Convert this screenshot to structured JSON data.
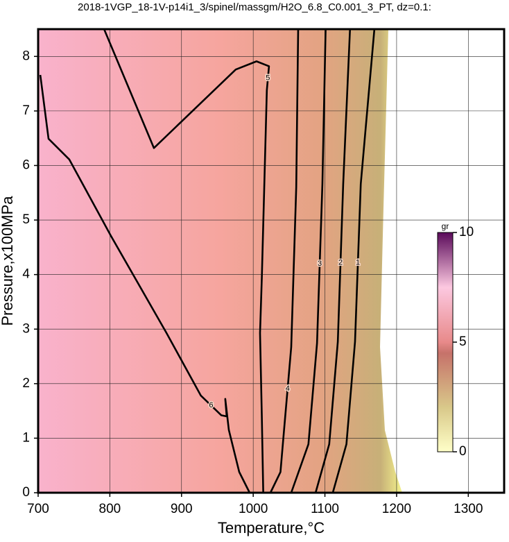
{
  "chart_data": {
    "type": "contour",
    "title": "2018-1VGP_18-1V-p14i1_3/spinel/massgm/H2O_6.8_C0.001_3_PT, dz=0.1:",
    "x_label": "Temperature,°C",
    "y_label": "Pressure,x100MPa",
    "xlim": [
      700,
      1350
    ],
    "ylim": [
      0,
      8.5
    ],
    "xticks": [
      700,
      800,
      900,
      1000,
      1100,
      1200,
      1300
    ],
    "yticks": [
      0,
      1,
      2,
      3,
      4,
      5,
      6,
      7,
      8
    ],
    "grid": true,
    "colorbar": {
      "label": "gr",
      "lim": [
        0,
        10
      ],
      "ticks": [
        0,
        5,
        10
      ]
    },
    "contours": [
      {
        "level": 5,
        "x": [
          792,
          861.5,
          975.6,
          1004.6,
          1022,
          1019,
          1012,
          1009.5,
          1012,
          1014
        ],
        "y": [
          8.5,
          6.32,
          7.76,
          7.91,
          7.82,
          7.38,
          3.94,
          2.93,
          1.4,
          0
        ]
      },
      {
        "level": 6,
        "x": [
          703,
          714.5,
          743.5,
          801.5,
          879,
          927,
          955.5,
          963,
          961,
          966,
          980.5,
          995
        ],
        "y": [
          7.66,
          6.49,
          6.11,
          4.71,
          2.93,
          1.78,
          1.42,
          1.4,
          1.72,
          1.15,
          0.38,
          0
        ]
      },
      {
        "level": 4,
        "x": [
          1062.7,
          1060,
          1053,
          1043,
          1038,
          1024
        ],
        "y": [
          8.5,
          5.6,
          2.67,
          1.15,
          0.38,
          0
        ]
      },
      {
        "level": 3,
        "x": [
          1101,
          1096.5,
          1089,
          1077,
          1053
        ],
        "y": [
          8.5,
          5.66,
          2.74,
          0.89,
          0
        ]
      },
      {
        "level": 2,
        "x": [
          1135,
          1125.5,
          1118,
          1106,
          1087
        ],
        "y": [
          8.5,
          5.66,
          2.77,
          0.89,
          0
        ]
      },
      {
        "level": 1,
        "x": [
          1169,
          1150,
          1142,
          1130,
          1111
        ],
        "y": [
          8.5,
          5.66,
          2.77,
          0.89,
          0
        ]
      }
    ]
  }
}
